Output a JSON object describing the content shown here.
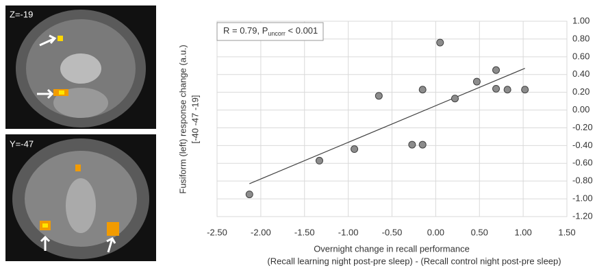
{
  "panels": [
    {
      "label": "Z=-19"
    },
    {
      "label": "Y=-47"
    }
  ],
  "chart_data": {
    "type": "scatter",
    "annotation": [
      "R = 0.79, P",
      "uncorr",
      " < 0.001"
    ],
    "x_label": [
      "Overnight change in recall performance",
      "(Recall learning night post-pre sleep) - (Recall control night post-pre sleep)"
    ],
    "y_label": [
      "Fusiform (left) response change (a.u.)",
      "[-40 -47 -19]"
    ],
    "x": [
      -2.13,
      -1.33,
      -0.93,
      -0.65,
      -0.27,
      -0.15,
      -0.15,
      0.05,
      0.22,
      0.47,
      0.69,
      0.69,
      0.82,
      1.02
    ],
    "values": [
      -0.95,
      -0.57,
      -0.44,
      0.16,
      -0.39,
      -0.39,
      0.23,
      0.76,
      0.13,
      0.32,
      0.45,
      0.24,
      0.23,
      0.23
    ],
    "color": "#8c8c8c",
    "trendline": {
      "x": [
        -2.13,
        1.02
      ],
      "y": [
        -0.83,
        0.47
      ]
    },
    "xlim": [
      -2.5,
      1.5
    ],
    "ylim": [
      -1.2,
      1.0
    ],
    "xticks": [
      {
        "value": -2.5,
        "label": "-2.50"
      },
      {
        "value": -2,
        "label": "-2.00"
      },
      {
        "value": -1.5,
        "label": "-1.50"
      },
      {
        "value": -1,
        "label": "-1.00"
      },
      {
        "value": -0.5,
        "label": "-0.50"
      },
      {
        "value": 0,
        "label": "0.00"
      },
      {
        "value": 0.5,
        "label": "0.50"
      },
      {
        "value": 1,
        "label": "1.00"
      },
      {
        "value": 1.5,
        "label": "1.50"
      }
    ],
    "yticks": [
      {
        "value": 1,
        "label": "1.00"
      },
      {
        "value": 0.8,
        "label": "0.80"
      },
      {
        "value": 0.6,
        "label": "0.60"
      },
      {
        "value": 0.4,
        "label": "0.40"
      },
      {
        "value": 0.2,
        "label": "0.20"
      },
      {
        "value": 0,
        "label": "0.00"
      },
      {
        "value": -0.2,
        "label": "-0.20"
      },
      {
        "value": -0.4,
        "label": "-0.40"
      },
      {
        "value": -0.6,
        "label": "-0.60"
      },
      {
        "value": -0.8,
        "label": "-0.80"
      },
      {
        "value": -1,
        "label": "-1.00"
      },
      {
        "value": -1.2,
        "label": "-1.20"
      }
    ],
    "grid": true
  }
}
